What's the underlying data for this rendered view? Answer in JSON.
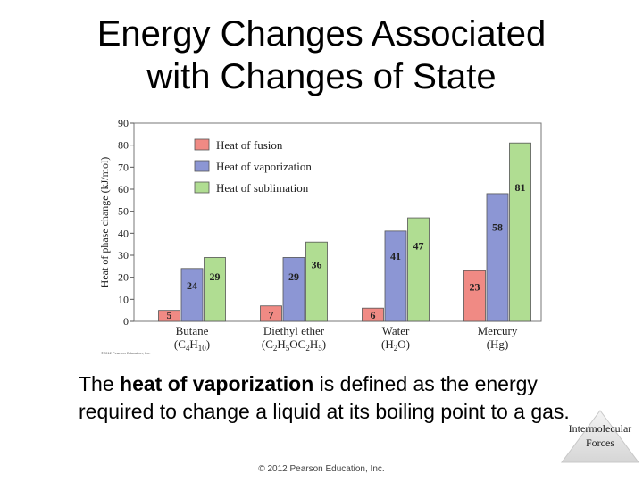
{
  "slide": {
    "title_line1": "Energy Changes Associated",
    "title_line2": "with Changes of State",
    "text_pre": "The ",
    "text_bold": "heat of vaporization",
    "text_post": " is defined as the energy required to change a liquid at its boiling point to a gas.",
    "chart_credit": "©2012 Pearson Education, Inc.",
    "footer_credit": "© 2012 Pearson Education, Inc.",
    "section_label_line1": "Intermolecular",
    "section_label_line2": "Forces"
  },
  "chart_data": {
    "type": "bar",
    "ylabel": "Heat of phase change (kJ/mol)",
    "ylim": [
      0,
      90
    ],
    "yticks": [
      0,
      10,
      20,
      30,
      40,
      50,
      60,
      70,
      80,
      90
    ],
    "grid": false,
    "legend_position": "top-left",
    "categories": [
      "Butane",
      "Diethyl ether",
      "Water",
      "Mercury"
    ],
    "category_formulas": [
      [
        [
          "C",
          ""
        ],
        [
          "4",
          "sub"
        ],
        [
          "H",
          ""
        ],
        [
          "10",
          "sub"
        ]
      ],
      [
        [
          "C",
          ""
        ],
        [
          "2",
          "sub"
        ],
        [
          "H",
          ""
        ],
        [
          "5",
          "sub"
        ],
        [
          "OC",
          ""
        ],
        [
          "2",
          "sub"
        ],
        [
          "H",
          ""
        ],
        [
          "5",
          "sub"
        ]
      ],
      [
        [
          "H",
          ""
        ],
        [
          "2",
          "sub"
        ],
        [
          "O",
          ""
        ]
      ],
      [
        [
          "Hg",
          ""
        ]
      ]
    ],
    "series": [
      {
        "name": "Heat of fusion",
        "values": [
          5,
          7,
          6,
          23
        ],
        "color": "#f08a84"
      },
      {
        "name": "Heat of vaporization",
        "values": [
          24,
          29,
          41,
          58
        ],
        "color": "#8c96d4"
      },
      {
        "name": "Heat of sublimation",
        "values": [
          29,
          36,
          47,
          81
        ],
        "color": "#b0dd92"
      }
    ]
  }
}
